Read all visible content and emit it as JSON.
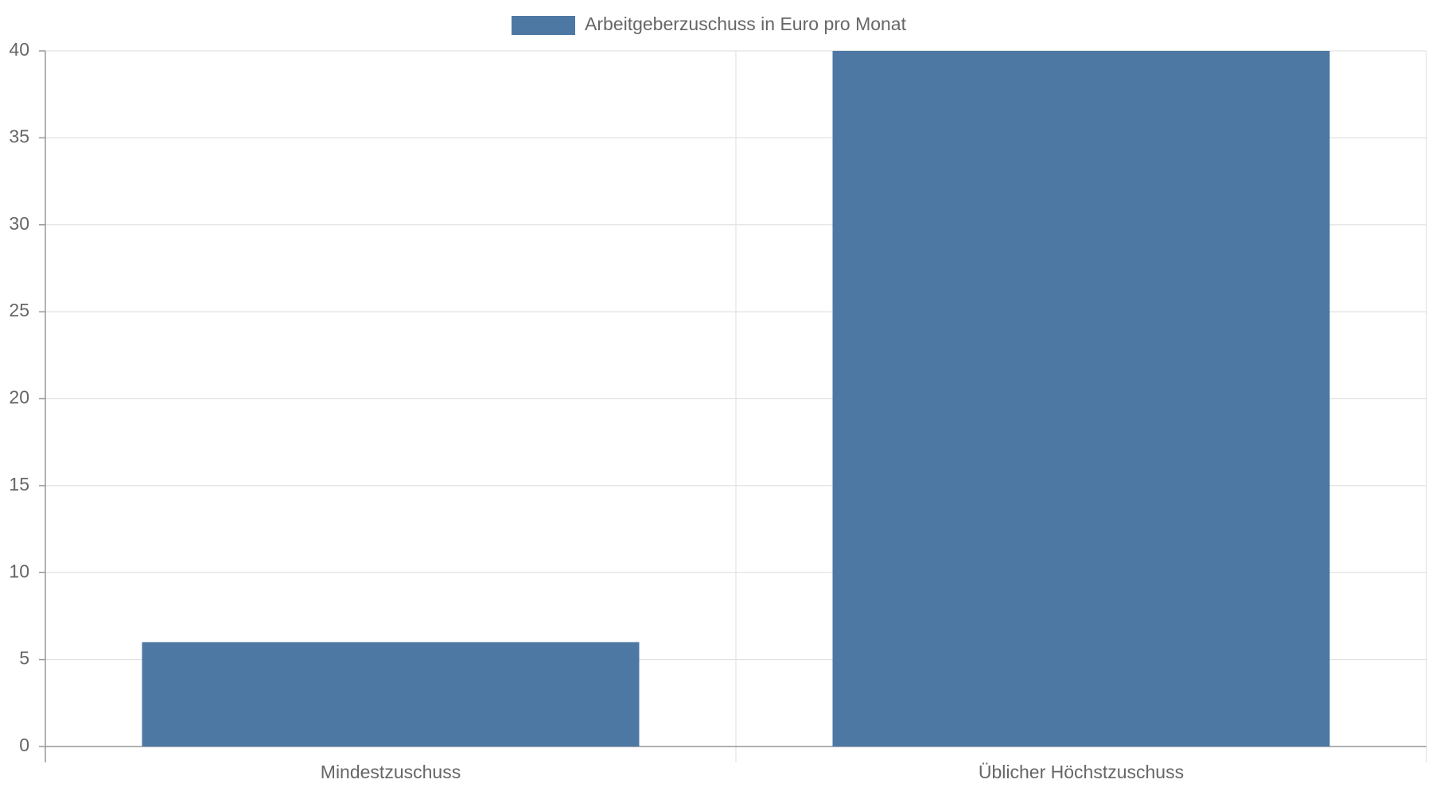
{
  "chart_data": {
    "type": "bar",
    "categories": [
      "Mindestzuschuss",
      "Üblicher Höchstzuschuss"
    ],
    "series": [
      {
        "name": "Arbeitgeberzuschuss in Euro pro Monat",
        "color": "#4e78a4",
        "values": [
          6,
          40
        ]
      }
    ],
    "ylim": [
      0,
      40
    ],
    "yticks": [
      0,
      5,
      10,
      15,
      20,
      25,
      30,
      35,
      40
    ],
    "grid": true,
    "legend": "top"
  }
}
